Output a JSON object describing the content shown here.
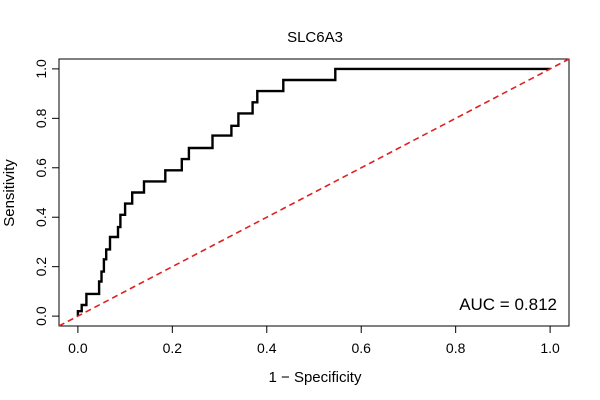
{
  "chart_data": {
    "type": "line",
    "title": "SLC6A3",
    "xlabel": "1 − Specificity",
    "ylabel": "Sensitivity",
    "xlim": [
      -0.04,
      1.04
    ],
    "ylim": [
      -0.04,
      1.04
    ],
    "x_ticks": [
      "0.0",
      "0.2",
      "0.4",
      "0.6",
      "0.8",
      "1.0"
    ],
    "y_ticks": [
      "0.0",
      "0.2",
      "0.4",
      "0.6",
      "0.8",
      "1.0"
    ],
    "grid": false,
    "annotation": "AUC = 0.812",
    "series": [
      {
        "color": "#000000",
        "style": "step",
        "points": [
          [
            0.0,
            0.0
          ],
          [
            0.0,
            0.02
          ],
          [
            0.008,
            0.02
          ],
          [
            0.008,
            0.045
          ],
          [
            0.018,
            0.045
          ],
          [
            0.018,
            0.09
          ],
          [
            0.045,
            0.09
          ],
          [
            0.045,
            0.14
          ],
          [
            0.05,
            0.14
          ],
          [
            0.05,
            0.18
          ],
          [
            0.055,
            0.18
          ],
          [
            0.055,
            0.23
          ],
          [
            0.06,
            0.23
          ],
          [
            0.06,
            0.27
          ],
          [
            0.068,
            0.27
          ],
          [
            0.068,
            0.32
          ],
          [
            0.085,
            0.32
          ],
          [
            0.085,
            0.36
          ],
          [
            0.09,
            0.36
          ],
          [
            0.09,
            0.41
          ],
          [
            0.1,
            0.41
          ],
          [
            0.1,
            0.455
          ],
          [
            0.115,
            0.455
          ],
          [
            0.115,
            0.5
          ],
          [
            0.14,
            0.5
          ],
          [
            0.14,
            0.545
          ],
          [
            0.185,
            0.545
          ],
          [
            0.185,
            0.59
          ],
          [
            0.22,
            0.59
          ],
          [
            0.22,
            0.635
          ],
          [
            0.235,
            0.635
          ],
          [
            0.235,
            0.68
          ],
          [
            0.285,
            0.68
          ],
          [
            0.285,
            0.73
          ],
          [
            0.325,
            0.73
          ],
          [
            0.325,
            0.77
          ],
          [
            0.34,
            0.77
          ],
          [
            0.34,
            0.82
          ],
          [
            0.37,
            0.82
          ],
          [
            0.37,
            0.865
          ],
          [
            0.38,
            0.865
          ],
          [
            0.38,
            0.91
          ],
          [
            0.435,
            0.91
          ],
          [
            0.435,
            0.955
          ],
          [
            0.545,
            0.955
          ],
          [
            0.545,
            1.0
          ],
          [
            1.0,
            1.0
          ]
        ]
      },
      {
        "color": "#e02020",
        "style": "dashed",
        "points": [
          [
            -0.04,
            -0.04
          ],
          [
            1.04,
            1.04
          ]
        ]
      }
    ]
  }
}
